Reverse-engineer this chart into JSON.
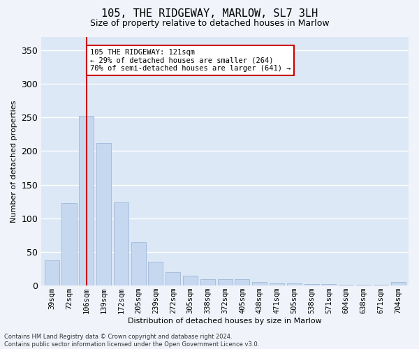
{
  "title": "105, THE RIDGEWAY, MARLOW, SL7 3LH",
  "subtitle": "Size of property relative to detached houses in Marlow",
  "xlabel": "Distribution of detached houses by size in Marlow",
  "ylabel": "Number of detached properties",
  "categories": [
    "39sqm",
    "72sqm",
    "106sqm",
    "139sqm",
    "172sqm",
    "205sqm",
    "239sqm",
    "272sqm",
    "305sqm",
    "338sqm",
    "372sqm",
    "405sqm",
    "438sqm",
    "471sqm",
    "505sqm",
    "538sqm",
    "571sqm",
    "604sqm",
    "638sqm",
    "671sqm",
    "704sqm"
  ],
  "values": [
    38,
    123,
    252,
    212,
    124,
    65,
    35,
    20,
    15,
    10,
    10,
    10,
    5,
    3,
    3,
    2,
    2,
    1,
    1,
    1,
    5
  ],
  "bar_color": "#c5d8f0",
  "bar_edge_color": "#a0b8d8",
  "vline_x": 2.0,
  "vline_color": "#cc0000",
  "annotation_text": "105 THE RIDGEWAY: 121sqm\n← 29% of detached houses are smaller (264)\n70% of semi-detached houses are larger (641) →",
  "annotation_box_color": "#ffffff",
  "annotation_box_edge_color": "#cc0000",
  "ylim": [
    0,
    370
  ],
  "yticks": [
    0,
    50,
    100,
    150,
    200,
    250,
    300,
    350
  ],
  "bg_color": "#dce8f5",
  "grid_color": "#ffffff",
  "fig_bg_color": "#f0f4fa",
  "footer": "Contains HM Land Registry data © Crown copyright and database right 2024.\nContains public sector information licensed under the Open Government Licence v3.0.",
  "title_fontsize": 11,
  "subtitle_fontsize": 9,
  "xlabel_fontsize": 8,
  "ylabel_fontsize": 8,
  "tick_fontsize": 7.5,
  "annotation_fontsize": 7.5
}
